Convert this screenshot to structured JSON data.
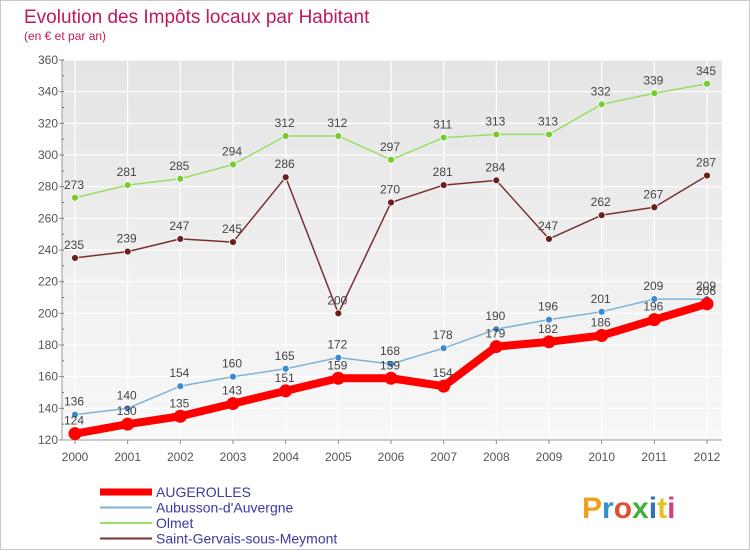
{
  "title": "Evolution des Impôts locaux par Habitant",
  "subtitle": "(en € et par an)",
  "logo_text": "Proxiti",
  "colors": {
    "title": "#c2185b",
    "axis_text": "#555555",
    "grid": "#ffffff",
    "plot_bg_top": "#e6e6e6",
    "plot_bg_bottom": "#f7f7f7",
    "label": "#444444"
  },
  "chart_data": {
    "type": "line",
    "x": [
      "2000",
      "2001",
      "2002",
      "2003",
      "2004",
      "2005",
      "2006",
      "2007",
      "2008",
      "2009",
      "2010",
      "2011",
      "2012"
    ],
    "ylim": [
      120,
      360
    ],
    "yticks": [
      120,
      140,
      160,
      180,
      200,
      220,
      240,
      260,
      280,
      300,
      320,
      340,
      360
    ],
    "grid": true,
    "legend_position": "bottom-left",
    "series": [
      {
        "name": "AUGEROLLES",
        "color": "#ff0000",
        "marker": "#ff0000",
        "width": 8,
        "values": [
          124,
          130,
          135,
          143,
          151,
          159,
          159,
          154,
          179,
          182,
          186,
          196,
          206
        ],
        "labels": [
          "124",
          "130",
          "135",
          "143",
          "151",
          "159",
          "159",
          "154",
          "179",
          "182",
          "186",
          "196",
          "206"
        ]
      },
      {
        "name": "Aubusson-d'Auvergne",
        "color": "#7eb3d9",
        "marker": "#3b8bd0",
        "width": 1.5,
        "values": [
          136,
          140,
          154,
          160,
          165,
          172,
          168,
          178,
          190,
          196,
          201,
          209,
          209
        ],
        "labels": [
          "136",
          "140",
          "154",
          "160",
          "165",
          "172",
          "168",
          "178",
          "190",
          "196",
          "201",
          "209",
          "209"
        ]
      },
      {
        "name": "Olmet",
        "color": "#99dd66",
        "marker": "#77cc33",
        "width": 1.5,
        "values": [
          273,
          281,
          285,
          294,
          312,
          312,
          297,
          311,
          313,
          313,
          332,
          339,
          345
        ],
        "labels": [
          "273",
          "281",
          "285",
          "294",
          "312",
          "312",
          "297",
          "311",
          "313",
          "313",
          "332",
          "339",
          "345"
        ]
      },
      {
        "name": "Saint-Gervais-sous-Meymont",
        "color": "#7a3030",
        "marker": "#6b1f1f",
        "width": 1.5,
        "values": [
          235,
          239,
          247,
          245,
          286,
          200,
          270,
          281,
          284,
          247,
          262,
          267,
          287
        ],
        "labels": [
          "235",
          "239",
          "247",
          "245",
          "286",
          "200",
          "270",
          "281",
          "284",
          "247",
          "262",
          "267",
          "287"
        ]
      }
    ]
  }
}
